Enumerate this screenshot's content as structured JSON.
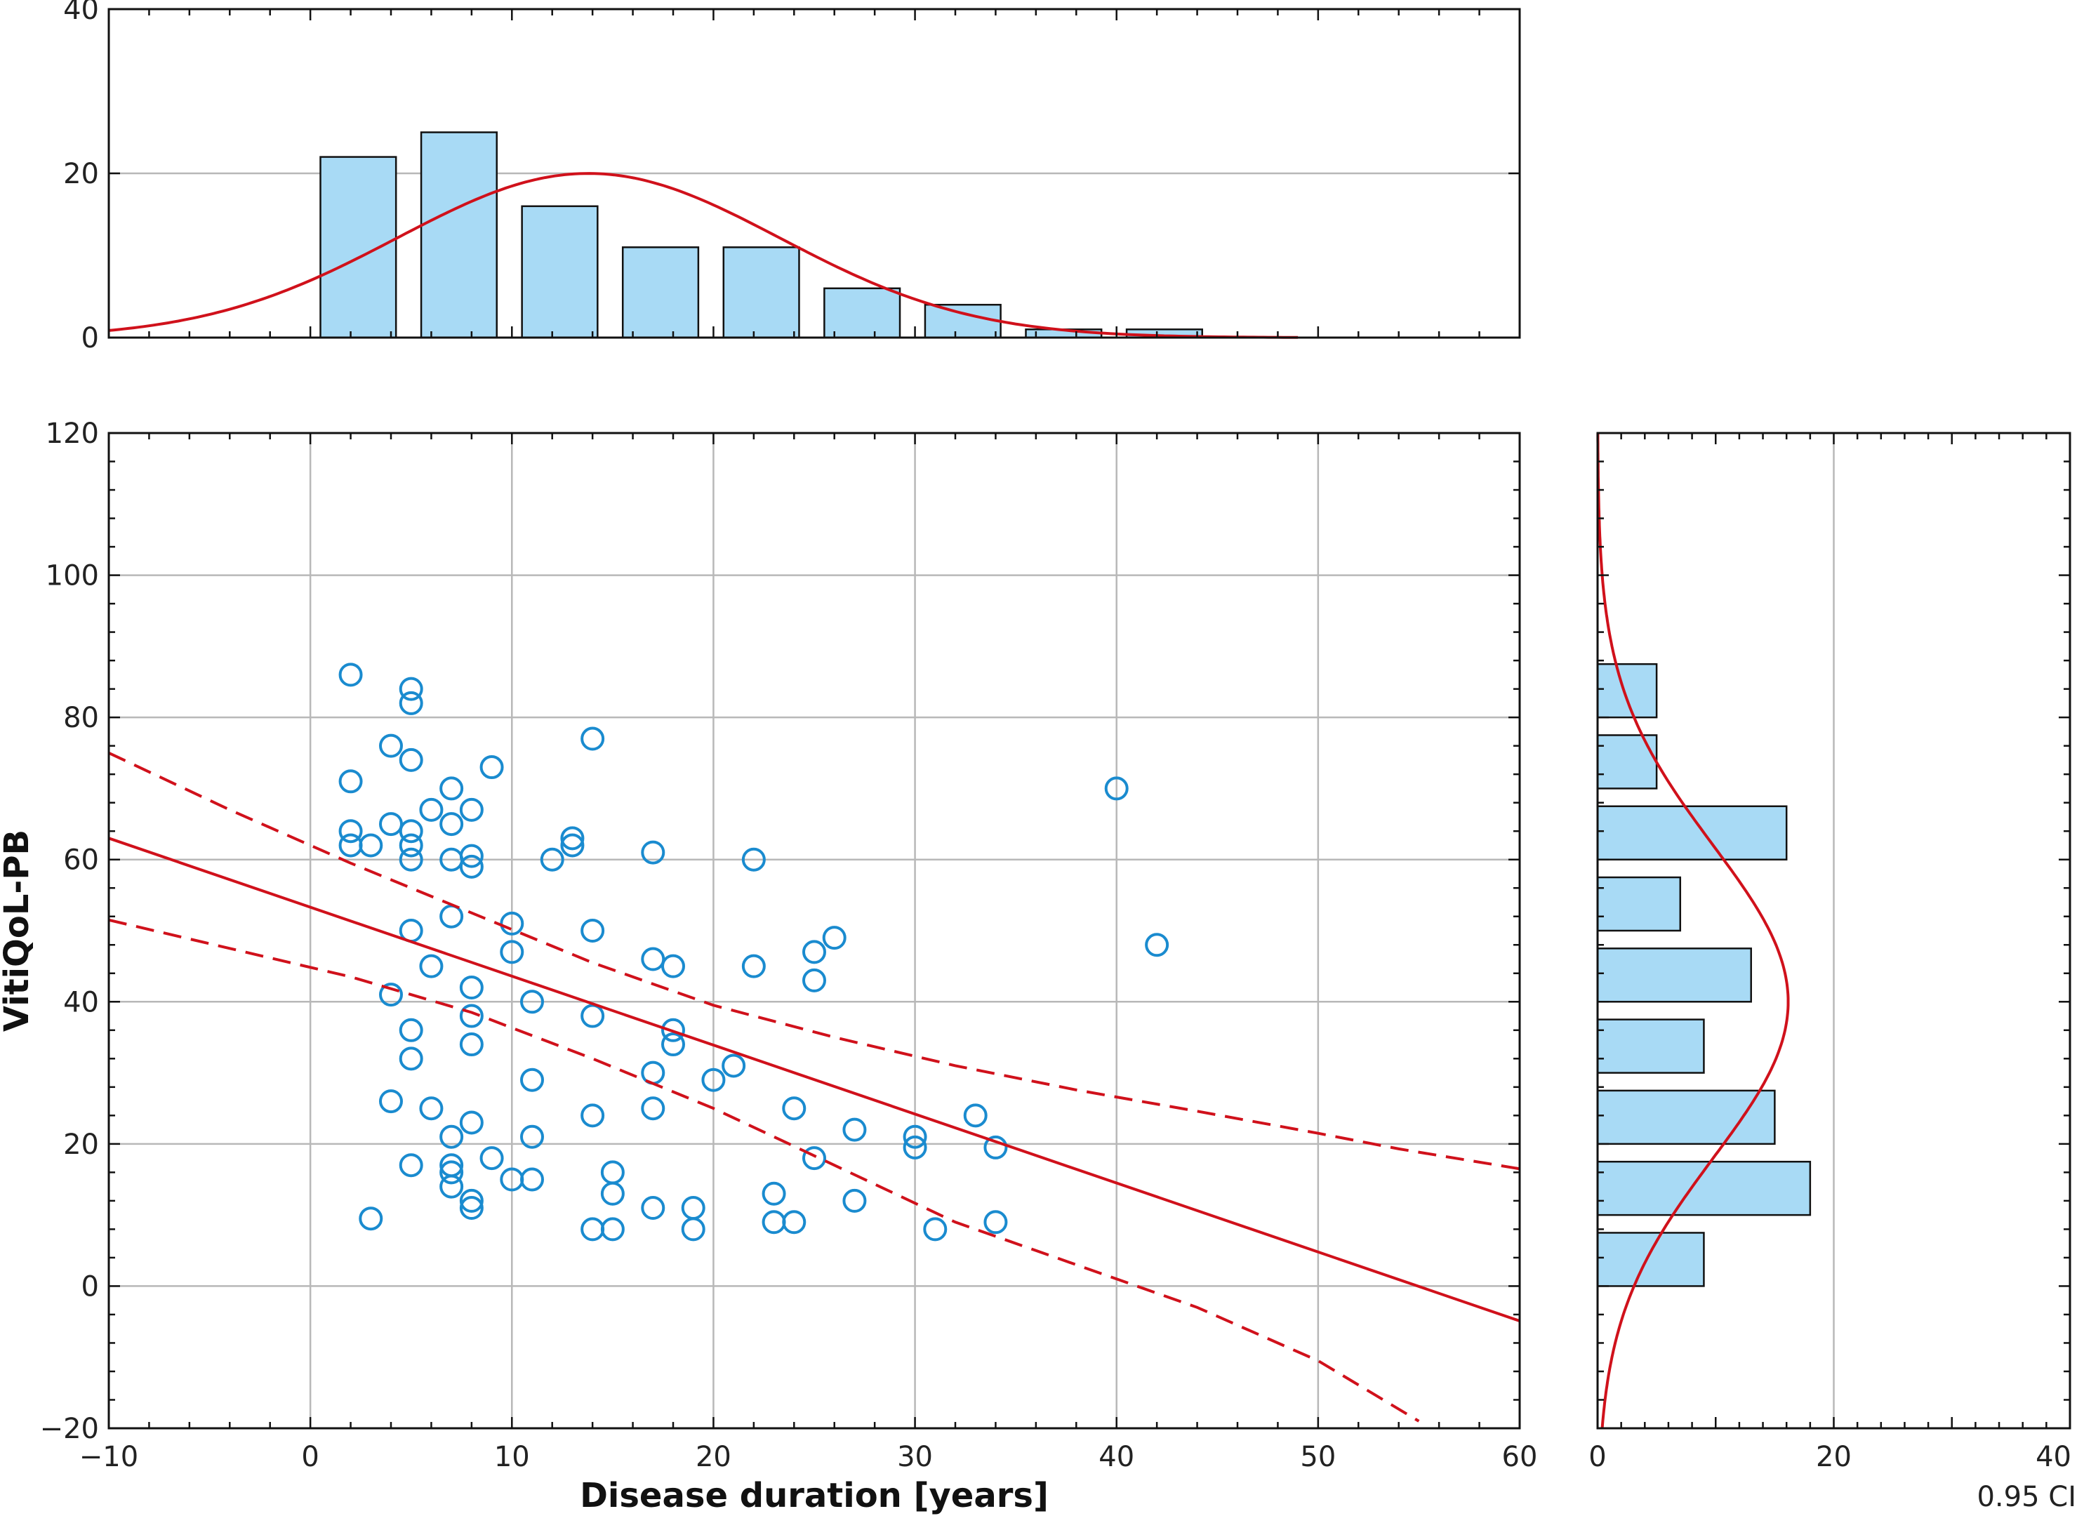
{
  "chart_data": [
    {
      "panel": "main-scatter",
      "type": "scatter",
      "xlabel": "Disease duration [years]",
      "ylabel": "VitiQoL-PB",
      "xlim": [
        -10,
        60
      ],
      "ylim": [
        -20,
        120
      ],
      "xticks": [
        -10,
        0,
        10,
        20,
        30,
        40,
        50,
        60
      ],
      "yticks": [
        -20,
        0,
        20,
        40,
        60,
        80,
        100,
        120
      ],
      "grid": true,
      "points": [
        [
          2,
          86
        ],
        [
          5,
          84
        ],
        [
          5,
          82
        ],
        [
          14,
          77
        ],
        [
          4,
          76
        ],
        [
          5,
          74
        ],
        [
          9,
          73
        ],
        [
          2,
          71
        ],
        [
          7,
          70
        ],
        [
          40,
          70
        ],
        [
          6,
          67
        ],
        [
          8,
          67
        ],
        [
          4,
          65
        ],
        [
          7,
          65
        ],
        [
          2,
          64
        ],
        [
          5,
          64
        ],
        [
          13,
          63
        ],
        [
          2,
          62
        ],
        [
          3,
          62
        ],
        [
          5,
          62
        ],
        [
          13,
          62
        ],
        [
          17,
          61
        ],
        [
          8,
          60.5
        ],
        [
          5,
          60
        ],
        [
          7,
          60
        ],
        [
          12,
          60
        ],
        [
          22,
          60
        ],
        [
          8,
          59
        ],
        [
          7,
          52
        ],
        [
          10,
          51
        ],
        [
          5,
          50
        ],
        [
          14,
          50
        ],
        [
          26,
          49
        ],
        [
          42,
          48
        ],
        [
          10,
          47
        ],
        [
          25,
          47
        ],
        [
          17,
          46
        ],
        [
          6,
          45
        ],
        [
          18,
          45
        ],
        [
          22,
          45
        ],
        [
          25,
          43
        ],
        [
          8,
          42
        ],
        [
          4,
          41
        ],
        [
          11,
          40
        ],
        [
          8,
          38
        ],
        [
          14,
          38
        ],
        [
          5,
          36
        ],
        [
          18,
          36
        ],
        [
          8,
          34
        ],
        [
          18,
          34
        ],
        [
          5,
          32
        ],
        [
          21,
          31
        ],
        [
          17,
          30
        ],
        [
          20,
          29
        ],
        [
          11,
          29
        ],
        [
          4,
          26
        ],
        [
          6,
          25
        ],
        [
          17,
          25
        ],
        [
          24,
          25
        ],
        [
          14,
          24
        ],
        [
          33,
          24
        ],
        [
          8,
          23
        ],
        [
          27,
          22
        ],
        [
          7,
          21
        ],
        [
          11,
          21
        ],
        [
          30,
          21
        ],
        [
          30,
          19.5
        ],
        [
          34,
          19.5
        ],
        [
          9,
          18
        ],
        [
          25,
          18
        ],
        [
          5,
          17
        ],
        [
          7,
          17
        ],
        [
          7,
          16
        ],
        [
          15,
          16
        ],
        [
          10,
          15
        ],
        [
          11,
          15
        ],
        [
          7,
          14
        ],
        [
          15,
          13
        ],
        [
          23,
          13
        ],
        [
          8,
          12
        ],
        [
          27,
          12
        ],
        [
          8,
          11
        ],
        [
          17,
          11
        ],
        [
          19,
          11
        ],
        [
          3,
          9.5
        ],
        [
          23,
          9
        ],
        [
          24,
          9
        ],
        [
          34,
          9
        ],
        [
          14,
          8
        ],
        [
          15,
          8
        ],
        [
          19,
          8
        ],
        [
          31,
          8
        ]
      ],
      "regression": {
        "intercept": 53.3,
        "slope": -0.97
      },
      "ci_upper": [
        [
          -10,
          75
        ],
        [
          -4,
          67
        ],
        [
          2,
          59.5
        ],
        [
          8,
          52.5
        ],
        [
          14,
          45.5
        ],
        [
          20,
          39.5
        ],
        [
          26,
          35
        ],
        [
          32,
          31
        ],
        [
          38,
          27.6
        ],
        [
          44,
          24.6
        ],
        [
          50,
          21.5
        ],
        [
          54,
          19.3
        ],
        [
          60,
          16.5
        ]
      ],
      "ci_lower": [
        [
          -10,
          51.5
        ],
        [
          -4,
          47.5
        ],
        [
          2,
          43.5
        ],
        [
          8,
          38.5
        ],
        [
          14,
          32
        ],
        [
          20,
          25
        ],
        [
          26,
          17
        ],
        [
          32,
          9
        ],
        [
          38,
          3
        ],
        [
          44,
          -3
        ],
        [
          50,
          -10.5
        ],
        [
          55,
          -19
        ]
      ]
    },
    {
      "panel": "top-histogram",
      "type": "bar",
      "xlim": [
        -10,
        60
      ],
      "ylim": [
        0,
        40
      ],
      "yticks": [
        0,
        20,
        40
      ],
      "bin_width": 5,
      "bin_starts": [
        0.5,
        5.5,
        10.5,
        15.5,
        20.5,
        25.5,
        30.5,
        35.5,
        40.5
      ],
      "values": [
        22,
        25,
        16,
        11,
        11,
        6,
        4,
        1,
        1
      ],
      "normal_curve": {
        "mean": 13.8,
        "sd": 9.5,
        "scale": 476,
        "x_range": [
          -10,
          49
        ]
      }
    },
    {
      "panel": "right-histogram",
      "type": "bar",
      "orientation": "horizontal",
      "xlim": [
        0,
        40
      ],
      "xticks": [
        0,
        20,
        40
      ],
      "ylim": [
        -20,
        120
      ],
      "bin_width": 10,
      "bin_starts": [
        0,
        10,
        20,
        30,
        40,
        50,
        60,
        70,
        80
      ],
      "values": [
        9,
        18,
        15,
        9,
        13,
        7,
        16,
        5,
        5
      ],
      "normal_curve": {
        "mean": 40,
        "sd": 22,
        "scale": 890,
        "y_range": [
          -20,
          120
        ]
      },
      "note": "0.95 CI"
    }
  ],
  "colors": {
    "points": "#1a8bcf",
    "bars": "#a8daf5",
    "lines": "#d0111b",
    "grid": "#b8b8b8",
    "frame": "#111111"
  }
}
